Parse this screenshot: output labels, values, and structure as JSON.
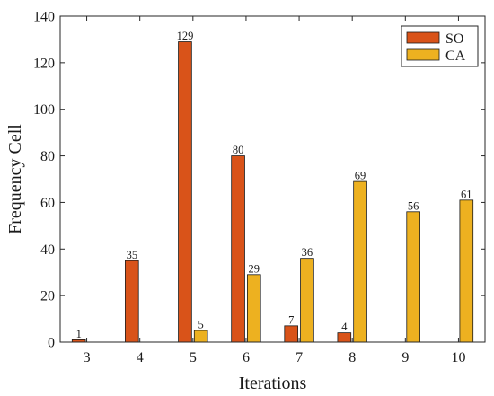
{
  "chart_data": {
    "type": "bar",
    "title": "",
    "xlabel": "Iterations",
    "ylabel": "Frequency Cell",
    "categories": [
      "3",
      "4",
      "5",
      "6",
      "7",
      "8",
      "9",
      "10"
    ],
    "series": [
      {
        "name": "SO",
        "color": "#D95319",
        "values": [
          1,
          35,
          129,
          80,
          7,
          4,
          null,
          null
        ]
      },
      {
        "name": "CA",
        "color": "#EDB120",
        "values": [
          null,
          null,
          5,
          29,
          36,
          69,
          56,
          61
        ]
      }
    ],
    "ylim": [
      0,
      140
    ],
    "yticks": [
      0,
      20,
      40,
      60,
      80,
      100,
      120,
      140
    ],
    "grid": false,
    "legend_position": "top-right",
    "data_labels": true
  }
}
